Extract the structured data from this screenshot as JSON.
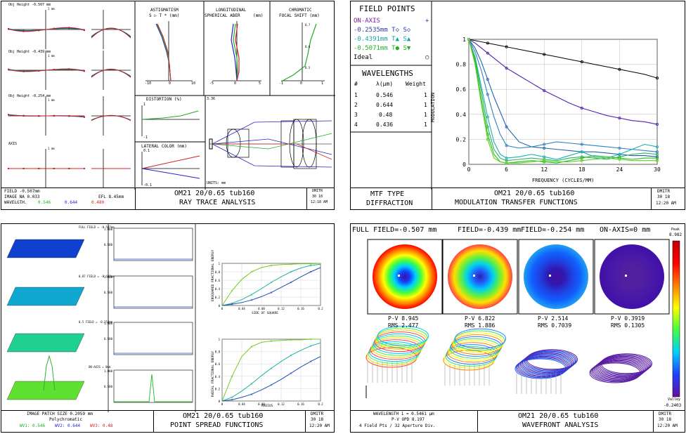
{
  "ray": {
    "rows": [
      {
        "label": "Obj Height -0.507 mm",
        "axis_label": "1 mm"
      },
      {
        "label": "Obj Height -0.439 mm",
        "axis_label": "1 mm"
      },
      {
        "label": "Obj Height -0.254 mm",
        "axis_label": "1 mm"
      },
      {
        "label": "AXIS",
        "axis_label": "1 mm"
      }
    ],
    "astig_title": "ASTIGMATISM",
    "astig_sub": "S ▷ T *   (mm)",
    "astig_ticks": [
      "-10",
      "0",
      "10"
    ],
    "long_title1": "LONGITUDINAL",
    "long_title2": "SPHERICAL ABER",
    "long_unit": "(mm)",
    "long_ticks": [
      "-5",
      "0",
      "5"
    ],
    "chrom_title1": "CHROMATIC",
    "chrom_title2": "FOCAL SHIFT (mm)",
    "chrom_ticks": [
      "-1",
      "0",
      "1"
    ],
    "chrom_y_ticks": [
      "0.7",
      "0.6",
      "0.5"
    ],
    "dist_title": "DISTORTION (%)",
    "dist_ticks": [
      "1",
      "-1"
    ],
    "lat_title": "LATERAL COLOR (mm)",
    "lat_ticks": [
      "0.1",
      "-0.1"
    ],
    "lens_scale": "3.36",
    "lens_units": "UNITS: mm",
    "foot_left": [
      "FIELD  -0.507mm",
      "IMAGE NA  0.033",
      "WAVELGTH."
    ],
    "efl": "EFL  8.45mm",
    "wavelength_entries": [
      {
        "text": "0.546",
        "color": "#22aa22"
      },
      {
        "text": "0.644",
        "color": "#2222cc"
      },
      {
        "text": "0.480",
        "color": "#cc2222"
      }
    ],
    "title_center": "OM21 20/0.65 tub160",
    "subtitle_center": "RAY TRACE ANALYSIS",
    "stamp": [
      "DMITR",
      "30  18",
      "12:18 AM"
    ]
  },
  "mtf": {
    "field_points_title": "FIELD POINTS",
    "field_points": [
      {
        "text": "ON-AXIS",
        "mark": "+",
        "color": "#8020a0"
      },
      {
        "text": "-0.2535mm  T◇ S◇",
        "mark": "",
        "color": "#2a3aaa"
      },
      {
        "text": "-0.4391mm  T▲ S▲",
        "mark": "",
        "color": "#16a0a0"
      },
      {
        "text": "-0.5071mm  T● S▼",
        "mark": "",
        "color": "#20b020"
      },
      {
        "text": "Ideal",
        "mark": "○",
        "color": "#000000"
      }
    ],
    "wavelengths_title": "WAVELENGTHS",
    "wl_headers": [
      "#",
      "λ(μm)",
      "Weight"
    ],
    "wl_rows": [
      [
        "1",
        "0.546",
        "1"
      ],
      [
        "2",
        "0.644",
        "1"
      ],
      [
        "3",
        "0.48",
        "1"
      ],
      [
        "4",
        "0.436",
        "1"
      ]
    ],
    "foot_left": [
      "MTF TYPE",
      "DIFFRACTION"
    ],
    "title_center": "OM21 20/0.65 tub160",
    "subtitle_center": "MODULATION TRANSFER FUNCTIONS",
    "stamp": [
      "DMITR",
      "30  18",
      "12:20 AM"
    ]
  },
  "psf": {
    "rows": [
      {
        "label": "FULL FIELD = -0.507mm"
      },
      {
        "label": "0.87 FIELD = -0.439mm"
      },
      {
        "label": "0.5 FIELD = -0.254mm"
      },
      {
        "label": "ON-AXIS = 0mm"
      }
    ],
    "profile_ticks": [
      "1.000",
      "0.500"
    ],
    "ensq_ylabel": "ENSQUARED FRACTIONAL ENERGY",
    "ensq_xlabel": "SIDE OF SQUARE",
    "rad_ylabel": "RADIAL FRACTIONAL ENERGY",
    "rad_xlabel": "RADIUS",
    "enc_xticks": [
      "0",
      "0.04",
      "0.08",
      "0.12",
      "0.16",
      "0.2"
    ],
    "enc_yticks": [
      "1",
      "0.8",
      "0.6",
      "0.4",
      "0.2",
      "0"
    ],
    "foot_left": [
      "IMAGE PATCH SIZE  0.2059 mm",
      "Polychromatic"
    ],
    "wv_entries": [
      {
        "text": "WV1: 0.546",
        "color": "#22aa22"
      },
      {
        "text": "WV2: 0.644",
        "color": "#2222cc"
      },
      {
        "text": "WV3: 0.48",
        "color": "#cc2222"
      }
    ],
    "title_center": "OM21 20/0.65 tub160",
    "subtitle_center": "POINT SPREAD FUNCTIONS",
    "stamp": [
      "DMITR",
      "30  18",
      "12:20 AM"
    ]
  },
  "wave": {
    "header_text": "FULL FIELD=-0.507 mm   FIELD=-0.439 mm   FIELD=-0.254 mm   ON-AXIS=0 mm",
    "headers": [
      "FULL FIELD=-0.507 mm",
      "FIELD=-0.439 mm",
      "FIELD=-0.254 mm",
      "ON-AXIS=0 mm"
    ],
    "maps": [
      {
        "pv": "P-V  8.945",
        "rms": "RMS  2.477"
      },
      {
        "pv": "P-V  6.822",
        "rms": "RMS  1.886"
      },
      {
        "pv": "P-V  2.514",
        "rms": "RMS  0.7039"
      },
      {
        "pv": "P-V  0.3919",
        "rms": "RMS  0.1305"
      }
    ],
    "scale_top_label": "Peak",
    "scale_top": "8.982",
    "scale_bottom_label": "Valley",
    "scale_bottom": "-0.2403",
    "foot_left": [
      "WAVELENGTH 1 = 0.5461 μm",
      "P-V OPD  8.197",
      "4 Field Pts / 32 Aperture Div."
    ],
    "title_center": "OM21 20/0.65 tub160",
    "subtitle_center": "WAVEFRONT ANALYSIS",
    "stamp": [
      "DMITR",
      "30  18",
      "12:20 AM"
    ]
  },
  "chart_data": [
    {
      "type": "line",
      "id": "mtf",
      "xlabel": "FREQUENCY (CYCLES/MM)",
      "ylabel": "MODULATION",
      "xlim": [
        0,
        30
      ],
      "ylim": [
        0,
        1
      ],
      "xticks": [
        0,
        6,
        12,
        18,
        24,
        30
      ],
      "yticks": [
        0,
        0.2,
        0.4,
        0.6,
        0.8,
        1
      ],
      "grid": true,
      "x": [
        0,
        1,
        2,
        3,
        4,
        5,
        6,
        8,
        10,
        12,
        14,
        16,
        18,
        20,
        22,
        24,
        26,
        28,
        30
      ],
      "series": [
        {
          "color": "#000000",
          "values": [
            1,
            0.99,
            0.98,
            0.97,
            0.96,
            0.95,
            0.94,
            0.92,
            0.9,
            0.88,
            0.86,
            0.84,
            0.82,
            0.8,
            0.78,
            0.76,
            0.74,
            0.72,
            0.69
          ]
        },
        {
          "color": "#5020b0",
          "values": [
            1,
            0.97,
            0.93,
            0.89,
            0.85,
            0.81,
            0.77,
            0.71,
            0.65,
            0.59,
            0.54,
            0.49,
            0.45,
            0.42,
            0.39,
            0.37,
            0.35,
            0.34,
            0.32
          ]
        },
        {
          "color": "#2060b0",
          "values": [
            1,
            0.93,
            0.82,
            0.68,
            0.54,
            0.42,
            0.3,
            0.18,
            0.14,
            0.13,
            0.12,
            0.11,
            0.1,
            0.1,
            0.09,
            0.08,
            0.07,
            0.07,
            0.06
          ]
        },
        {
          "color": "#3080c0",
          "values": [
            1,
            0.9,
            0.75,
            0.56,
            0.38,
            0.24,
            0.15,
            0.13,
            0.14,
            0.16,
            0.18,
            0.17,
            0.16,
            0.15,
            0.14,
            0.13,
            0.12,
            0.11,
            0.1
          ]
        },
        {
          "color": "#18b0b0",
          "values": [
            1,
            0.86,
            0.62,
            0.38,
            0.18,
            0.08,
            0.05,
            0.06,
            0.08,
            0.06,
            0.04,
            0.07,
            0.1,
            0.06,
            0.05,
            0.08,
            0.12,
            0.16,
            0.14
          ]
        },
        {
          "color": "#30b060",
          "values": [
            1,
            0.84,
            0.58,
            0.3,
            0.12,
            0.05,
            0.03,
            0.04,
            0.05,
            0.04,
            0.03,
            0.05,
            0.06,
            0.05,
            0.04,
            0.06,
            0.08,
            0.09,
            0.08
          ]
        },
        {
          "color": "#20c020",
          "values": [
            1,
            0.82,
            0.52,
            0.24,
            0.08,
            0.02,
            0.01,
            0.02,
            0.03,
            0.02,
            0.01,
            0.03,
            0.05,
            0.07,
            0.06,
            0.05,
            0.04,
            0.05,
            0.05
          ]
        },
        {
          "color": "#60d020",
          "values": [
            1,
            0.8,
            0.48,
            0.2,
            0.05,
            0.02,
            0.01,
            0.01,
            0.02,
            0.03,
            0.02,
            0.02,
            0.03,
            0.04,
            0.05,
            0.04,
            0.03,
            0.03,
            0.03
          ]
        }
      ]
    },
    {
      "type": "line",
      "id": "ensquared",
      "xlabel": "SIDE OF SQUARE",
      "ylabel": "ENSQUARED FRACTIONAL ENERGY",
      "xlim": [
        0,
        0.2
      ],
      "ylim": [
        0,
        1
      ],
      "x": [
        0,
        0.02,
        0.04,
        0.06,
        0.08,
        0.1,
        0.12,
        0.14,
        0.16,
        0.18,
        0.2
      ],
      "series": [
        {
          "color": "#70cc20",
          "values": [
            0,
            0.35,
            0.62,
            0.8,
            0.9,
            0.95,
            0.97,
            0.98,
            0.99,
            0.99,
            1.0
          ]
        },
        {
          "color": "#20b0a0",
          "values": [
            0,
            0.05,
            0.14,
            0.26,
            0.4,
            0.55,
            0.68,
            0.8,
            0.89,
            0.95,
            0.98
          ]
        },
        {
          "color": "#2050b0",
          "values": [
            0,
            0.03,
            0.07,
            0.13,
            0.21,
            0.31,
            0.43,
            0.55,
            0.68,
            0.8,
            0.9
          ]
        }
      ]
    },
    {
      "type": "line",
      "id": "radial",
      "xlabel": "RADIUS",
      "ylabel": "RADIAL FRACTIONAL ENERGY",
      "xlim": [
        0,
        0.2
      ],
      "ylim": [
        0,
        1
      ],
      "x": [
        0,
        0.02,
        0.04,
        0.06,
        0.08,
        0.1,
        0.12,
        0.14,
        0.16,
        0.18,
        0.2
      ],
      "series": [
        {
          "color": "#70cc20",
          "values": [
            0,
            0.4,
            0.72,
            0.88,
            0.95,
            0.97,
            0.98,
            0.99,
            0.99,
            1.0,
            1.0
          ]
        },
        {
          "color": "#20b0a0",
          "values": [
            0,
            0.06,
            0.16,
            0.28,
            0.41,
            0.53,
            0.64,
            0.74,
            0.82,
            0.89,
            0.94
          ]
        },
        {
          "color": "#2050b0",
          "values": [
            0,
            0.02,
            0.06,
            0.11,
            0.18,
            0.26,
            0.35,
            0.45,
            0.55,
            0.64,
            0.72
          ]
        }
      ]
    },
    {
      "type": "heatmap",
      "id": "wavefront",
      "maps": [
        {
          "peak_to_valley": 8.945,
          "rms": 2.477
        },
        {
          "peak_to_valley": 6.822,
          "rms": 1.886
        },
        {
          "peak_to_valley": 2.514,
          "rms": 0.7039
        },
        {
          "peak_to_valley": 0.3919,
          "rms": 0.1305
        }
      ],
      "scale_range": [
        -0.2403,
        8.982
      ]
    }
  ]
}
